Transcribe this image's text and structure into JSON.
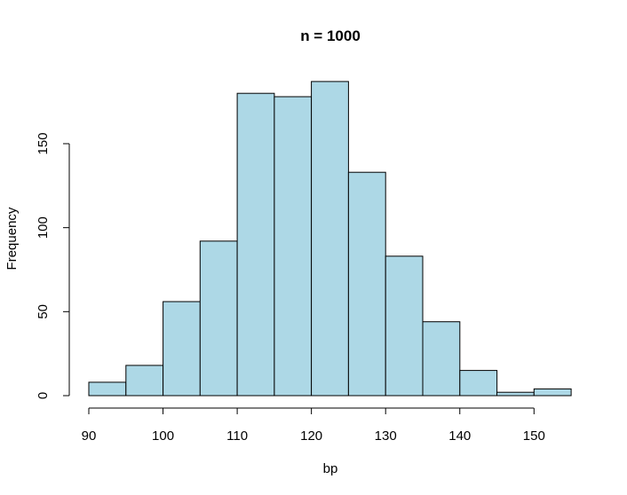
{
  "chart_data": {
    "type": "bar",
    "title": "n = 1000",
    "xlabel": "bp",
    "ylabel": "Frequency",
    "bar_color": "#add8e6",
    "bins": [
      {
        "x0": 90,
        "x1": 95,
        "count": 8
      },
      {
        "x0": 95,
        "x1": 100,
        "count": 18
      },
      {
        "x0": 100,
        "x1": 105,
        "count": 56
      },
      {
        "x0": 105,
        "x1": 110,
        "count": 92
      },
      {
        "x0": 110,
        "x1": 115,
        "count": 180
      },
      {
        "x0": 115,
        "x1": 120,
        "count": 178
      },
      {
        "x0": 120,
        "x1": 125,
        "count": 187
      },
      {
        "x0": 125,
        "x1": 130,
        "count": 133
      },
      {
        "x0": 130,
        "x1": 135,
        "count": 83
      },
      {
        "x0": 135,
        "x1": 140,
        "count": 44
      },
      {
        "x0": 140,
        "x1": 145,
        "count": 15
      },
      {
        "x0": 145,
        "x1": 150,
        "count": 2
      },
      {
        "x0": 150,
        "x1": 155,
        "count": 4
      }
    ],
    "xticks": [
      90,
      100,
      110,
      120,
      130,
      140,
      150
    ],
    "yticks": [
      0,
      50,
      100,
      150
    ],
    "xlim": [
      90,
      155
    ],
    "ylim": [
      0,
      190
    ],
    "grid": false,
    "legend": "none"
  }
}
